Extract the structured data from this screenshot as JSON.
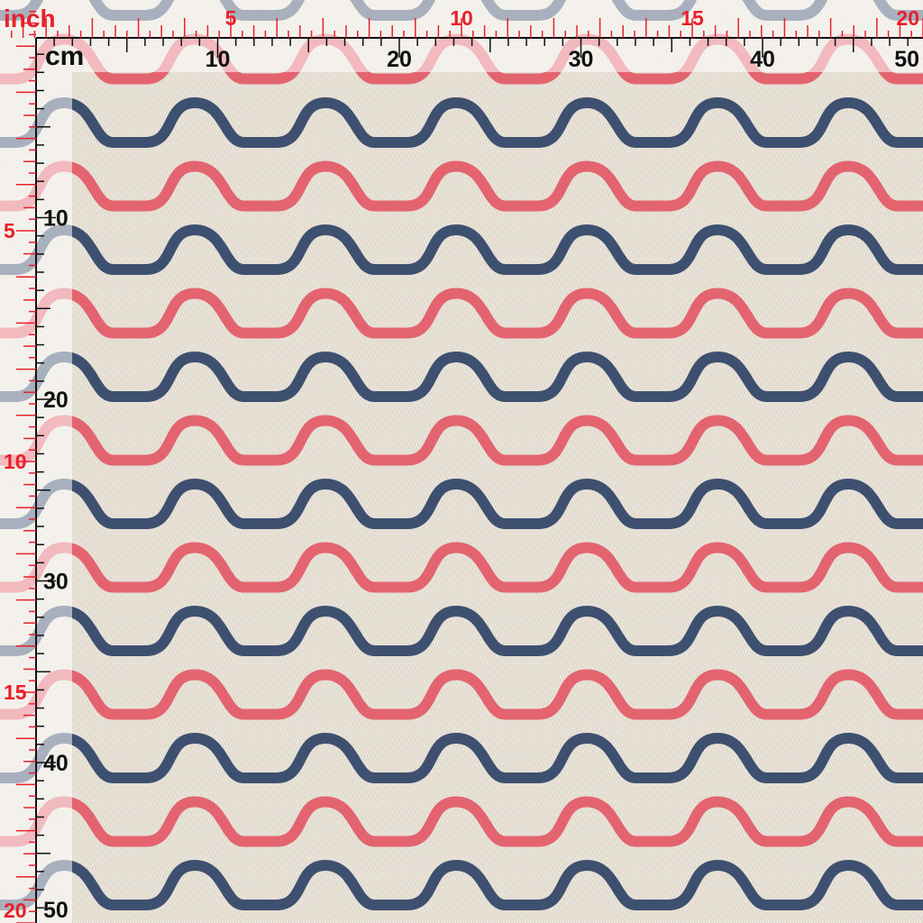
{
  "rulers": {
    "inch_unit": "inch",
    "cm_unit": "cm",
    "top_inch_labels": [
      5,
      10,
      15,
      20
    ],
    "top_cm_labels": [
      10,
      20,
      30,
      40,
      50
    ],
    "left_inch_labels": [
      5,
      10,
      15,
      20
    ],
    "left_cm_labels": [
      10,
      20,
      30,
      40,
      50
    ]
  }
}
